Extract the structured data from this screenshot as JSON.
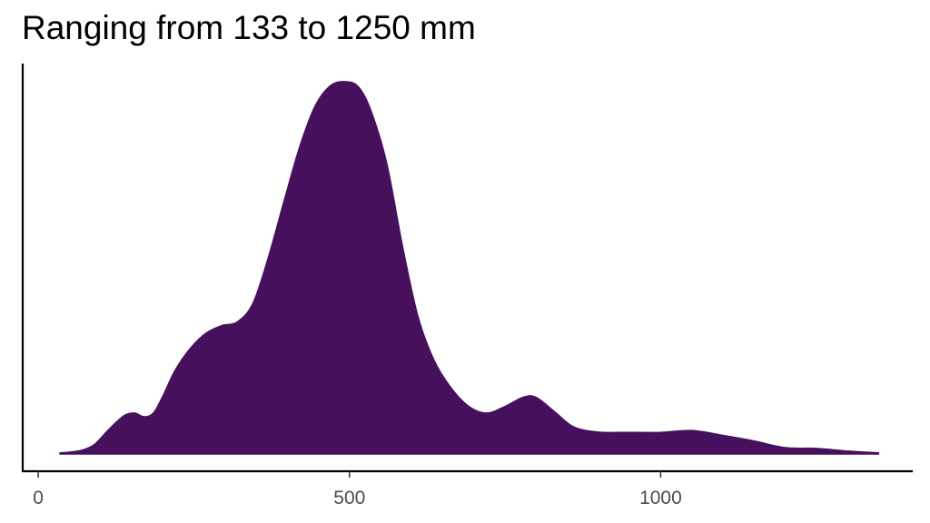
{
  "chart_data": {
    "type": "area",
    "subtype": "density",
    "title": "Ranging from 133 to 1250 mm",
    "xlabel": "",
    "ylabel": "",
    "xlim": [
      -25,
      1405
    ],
    "ylim": [
      0,
      1
    ],
    "x_ticks": [
      0,
      500,
      1000
    ],
    "x_tick_labels": [
      "0",
      "500",
      "1000"
    ],
    "y_axis_ticks_shown": false,
    "grid": false,
    "legend": "none",
    "fill_color": "#46105c",
    "series": [
      {
        "x": [
          35,
          50,
          70,
          90,
          110,
          125,
          140,
          155,
          170,
          185,
          200,
          220,
          245,
          270,
          295,
          320,
          345,
          370,
          395,
          420,
          445,
          470,
          495,
          515,
          535,
          560,
          585,
          610,
          635,
          660,
          690,
          720,
          750,
          780,
          800,
          830,
          860,
          900,
          950,
          1000,
          1050,
          1100,
          1150,
          1200,
          1250,
          1300,
          1350
        ],
        "y": [
          0.003,
          0.005,
          0.01,
          0.025,
          0.06,
          0.085,
          0.105,
          0.11,
          0.1,
          0.11,
          0.155,
          0.225,
          0.285,
          0.325,
          0.345,
          0.355,
          0.405,
          0.53,
          0.68,
          0.825,
          0.935,
          0.99,
          1.0,
          0.985,
          0.92,
          0.78,
          0.56,
          0.37,
          0.255,
          0.185,
          0.13,
          0.11,
          0.128,
          0.153,
          0.152,
          0.113,
          0.073,
          0.059,
          0.058,
          0.058,
          0.063,
          0.05,
          0.035,
          0.017,
          0.015,
          0.008,
          0.003
        ]
      }
    ]
  }
}
